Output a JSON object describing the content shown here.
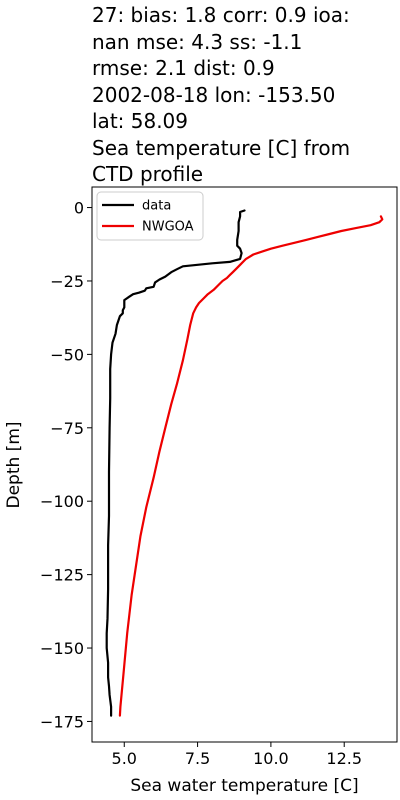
{
  "title_lines": [
    "27: bias: 1.8  corr: 0.9  ioa:",
    "nan  mse: 4.3  ss: -1.1",
    "rmse: 2.1  dist: 0.9",
    "2002-08-18 lon: -153.50",
    "lat: 58.09",
    "Sea temperature [C] from",
    "CTD profile"
  ],
  "chart_data": {
    "type": "line",
    "xlabel": "Sea water temperature [C]",
    "ylabel": "Depth [m]",
    "xlim": [
      3.9,
      14.3
    ],
    "ylim": [
      -182,
      7
    ],
    "xticks": [
      5.0,
      7.5,
      10.0,
      12.5
    ],
    "xtick_labels": [
      "5.0",
      "7.5",
      "10.0",
      "12.5"
    ],
    "yticks": [
      0,
      -25,
      -50,
      -75,
      -100,
      -125,
      -150,
      -175
    ],
    "ytick_labels": [
      "0",
      "−25",
      "−50",
      "−75",
      "−100",
      "−125",
      "−150",
      "−175"
    ],
    "grid": false,
    "legend_position": "top-left",
    "series": [
      {
        "name": "data",
        "color": "#000000",
        "points": [
          [
            9.1,
            -1
          ],
          [
            8.95,
            -1.5
          ],
          [
            8.95,
            -3
          ],
          [
            8.9,
            -5
          ],
          [
            8.9,
            -8
          ],
          [
            8.85,
            -11
          ],
          [
            8.85,
            -13
          ],
          [
            8.95,
            -14
          ],
          [
            9.0,
            -15.5
          ],
          [
            8.95,
            -17.5
          ],
          [
            8.6,
            -18.5
          ],
          [
            8.0,
            -19
          ],
          [
            7.5,
            -19.5
          ],
          [
            7.0,
            -20
          ],
          [
            6.8,
            -21
          ],
          [
            6.6,
            -22
          ],
          [
            6.4,
            -23.5
          ],
          [
            6.2,
            -24.5
          ],
          [
            6.05,
            -25.5
          ],
          [
            6.0,
            -27
          ],
          [
            5.75,
            -27.5
          ],
          [
            5.7,
            -28.3
          ],
          [
            5.5,
            -29
          ],
          [
            5.3,
            -29.5
          ],
          [
            5.15,
            -30.5
          ],
          [
            5.0,
            -31.5
          ],
          [
            5.0,
            -34
          ],
          [
            4.95,
            -35
          ],
          [
            4.95,
            -36
          ],
          [
            4.85,
            -37
          ],
          [
            4.8,
            -38.5
          ],
          [
            4.75,
            -40
          ],
          [
            4.7,
            -43
          ],
          [
            4.6,
            -46
          ],
          [
            4.55,
            -50
          ],
          [
            4.52,
            -55
          ],
          [
            4.52,
            -65
          ],
          [
            4.5,
            -75
          ],
          [
            4.48,
            -90
          ],
          [
            4.48,
            -105
          ],
          [
            4.45,
            -115
          ],
          [
            4.45,
            -130
          ],
          [
            4.43,
            -140
          ],
          [
            4.4,
            -145
          ],
          [
            4.4,
            -150
          ],
          [
            4.45,
            -155
          ],
          [
            4.45,
            -160
          ],
          [
            4.48,
            -163
          ],
          [
            4.5,
            -166
          ],
          [
            4.55,
            -170
          ],
          [
            4.55,
            -173
          ]
        ]
      },
      {
        "name": "NWGOA",
        "color": "#ee0000",
        "points": [
          [
            13.75,
            -3
          ],
          [
            13.8,
            -4
          ],
          [
            13.7,
            -5
          ],
          [
            13.4,
            -6
          ],
          [
            12.9,
            -7
          ],
          [
            12.4,
            -8
          ],
          [
            12.0,
            -9
          ],
          [
            11.6,
            -10
          ],
          [
            11.2,
            -11
          ],
          [
            10.8,
            -12
          ],
          [
            10.4,
            -13
          ],
          [
            10.0,
            -14
          ],
          [
            9.7,
            -15
          ],
          [
            9.4,
            -16
          ],
          [
            9.15,
            -17.5
          ],
          [
            9.0,
            -19
          ],
          [
            8.85,
            -20.5
          ],
          [
            8.7,
            -22
          ],
          [
            8.6,
            -23
          ],
          [
            8.5,
            -24
          ],
          [
            8.35,
            -25
          ],
          [
            8.2,
            -26.5
          ],
          [
            8.05,
            -28
          ],
          [
            7.85,
            -29.5
          ],
          [
            7.7,
            -31
          ],
          [
            7.55,
            -32.5
          ],
          [
            7.45,
            -34
          ],
          [
            7.35,
            -36
          ],
          [
            7.3,
            -38
          ],
          [
            7.25,
            -40
          ],
          [
            7.15,
            -45
          ],
          [
            7.0,
            -52
          ],
          [
            6.8,
            -60
          ],
          [
            6.6,
            -67
          ],
          [
            6.4,
            -75
          ],
          [
            6.2,
            -83
          ],
          [
            6.0,
            -92
          ],
          [
            5.75,
            -102
          ],
          [
            5.55,
            -112
          ],
          [
            5.4,
            -122
          ],
          [
            5.25,
            -132
          ],
          [
            5.1,
            -145
          ],
          [
            4.98,
            -158
          ],
          [
            4.87,
            -170
          ],
          [
            4.85,
            -173
          ]
        ]
      }
    ]
  }
}
